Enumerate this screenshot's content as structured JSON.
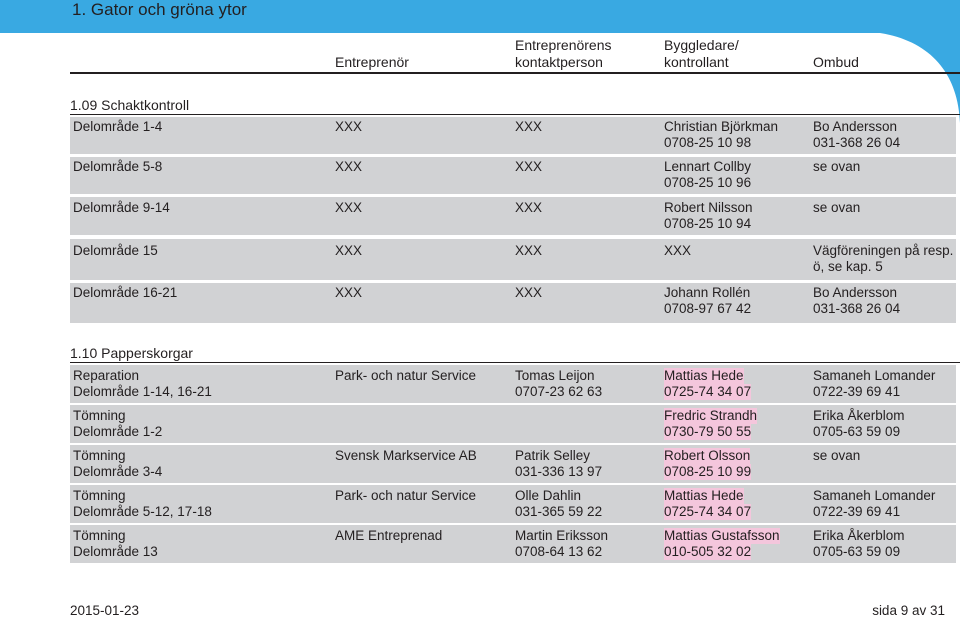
{
  "page": {
    "title": "1. Gator och gröna ytor",
    "date": "2015-01-23",
    "page_label": "sida 9 av 31"
  },
  "columns": {
    "entreprenor": "Entreprenör",
    "kontakt_line1": "Entreprenörens",
    "kontakt_line2": "kontaktperson",
    "bygg_line1": "Byggledare/",
    "bygg_line2": "kontrollant",
    "ombud": "Ombud"
  },
  "section1": {
    "title": "1.09 Schaktkontroll",
    "rows": [
      {
        "area": "Delområde 1-4",
        "entreprenor": "XXX",
        "kontakt": "XXX",
        "bygg1": "Christian Björkman",
        "bygg2": "0708-25 10 98",
        "ombud1": "Bo Andersson",
        "ombud2": "031-368 26 04"
      },
      {
        "area": "Delområde 5-8",
        "entreprenor": "XXX",
        "kontakt": "XXX",
        "bygg1": "Lennart Collby",
        "bygg2": "0708-25 10 96",
        "ombud1": "se ovan",
        "ombud2": ""
      },
      {
        "area": "Delområde 9-14",
        "entreprenor": "XXX",
        "kontakt": "XXX",
        "bygg1": "Robert Nilsson",
        "bygg2": "0708-25 10 94",
        "ombud1": "se ovan",
        "ombud2": ""
      },
      {
        "area": "Delområde 15",
        "entreprenor": "XXX",
        "kontakt": "XXX",
        "bygg1": "XXX",
        "bygg2": "",
        "ombud1": "Vägföreningen på resp.",
        "ombud2": "ö, se kap. 5"
      },
      {
        "area": "Delområde 16-21",
        "entreprenor": "XXX",
        "kontakt": "XXX",
        "bygg1": "Johann Rollén",
        "bygg2": "0708-97 67 42",
        "ombud1": "Bo Andersson",
        "ombud2": "031-368 26 04"
      }
    ]
  },
  "section2": {
    "title": "1.10 Papperskorgar",
    "rows": [
      {
        "area1": "Reparation",
        "area2": "Delområde 1-14, 16-21",
        "entreprenor": "Park- och natur Service",
        "kontakt1": "Tomas Leijon",
        "kontakt2": "0707-23 62 63",
        "bygg1": "Mattias Hede",
        "bygg2": "0725-74 34 07",
        "ombud1": "Samaneh Lomander",
        "ombud2": "0722-39 69 41"
      },
      {
        "area1": "Tömning",
        "area2": "Delområde 1-2",
        "entreprenor": "",
        "kontakt1": "",
        "kontakt2": "",
        "bygg1": "Fredric Strandh",
        "bygg2": "0730-79 50 55",
        "ombud1": "Erika Åkerblom",
        "ombud2": "0705-63 59 09"
      },
      {
        "area1": "Tömning",
        "area2": "Delområde 3-4",
        "entreprenor": "Svensk Markservice AB",
        "kontakt1": "Patrik Selley",
        "kontakt2": "031-336 13 97",
        "bygg1": "Robert Olsson",
        "bygg2": "0708-25 10 99",
        "ombud1": "se ovan",
        "ombud2": ""
      },
      {
        "area1": "Tömning",
        "area2": "Delområde 5-12, 17-18",
        "entreprenor": "Park- och natur Service",
        "kontakt1": "Olle Dahlin",
        "kontakt2": "031-365 59 22",
        "bygg1": "Mattias Hede",
        "bygg2": "0725-74 34 07",
        "ombud1": "Samaneh Lomander",
        "ombud2": "0722-39 69 41"
      },
      {
        "area1": "Tömning",
        "area2": "Delområde 13",
        "entreprenor": "AME Entreprenad",
        "kontakt1": "Martin Eriksson",
        "kontakt2": "0708-64 13 62",
        "bygg1": "Mattias Gustafsson",
        "bygg2": "010-505 32 02",
        "ombud1": "Erika Åkerblom",
        "ombud2": "0705-63 59 09"
      }
    ]
  },
  "colors": {
    "band": "#39a9e2",
    "row": "#d1d2d4",
    "highlight": "#f4c6dc"
  }
}
